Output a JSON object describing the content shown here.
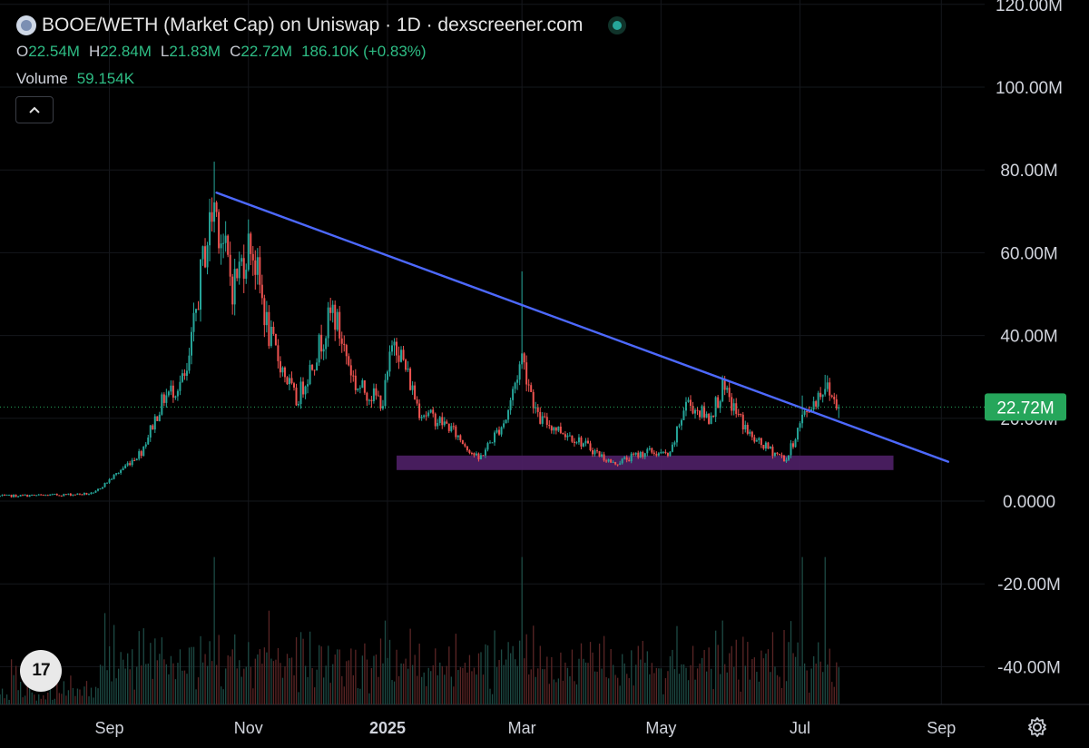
{
  "header": {
    "title": "BOOE/WETH (Market Cap) on Uniswap · 1D · dexscreener.com",
    "ohlc": {
      "o_label": "O",
      "o": "22.54M",
      "h_label": "H",
      "h": "22.84M",
      "l_label": "L",
      "l": "21.83M",
      "c_label": "C",
      "c": "22.72M",
      "change": "186.10K (+0.83%)"
    },
    "volume_label": "Volume",
    "volume_value": "59.154K",
    "collapse_icon": "chevron-up-icon",
    "live_icon": "live-status-dot-icon"
  },
  "logo_text": "17",
  "chart_data": {
    "type": "candlestick",
    "title": "BOOE/WETH (Market Cap) on Uniswap · 1D · dexscreener.com",
    "ylim": [
      -45000000,
      120000000
    ],
    "y_ticks": [
      {
        "v": 120000000,
        "label": "120.00M"
      },
      {
        "v": 100000000,
        "label": "100.00M"
      },
      {
        "v": 80000000,
        "label": "80.00M"
      },
      {
        "v": 60000000,
        "label": "60.00M"
      },
      {
        "v": 40000000,
        "label": "40.00M"
      },
      {
        "v": 20000000,
        "label": "20.00M"
      },
      {
        "v": 0,
        "label": "0.0000"
      },
      {
        "v": -20000000,
        "label": "-20.00M"
      },
      {
        "v": -40000000,
        "label": "-40.00M"
      }
    ],
    "x_range": [
      "2024-07-15",
      "2025-09-20"
    ],
    "x_ticks": [
      {
        "date": "2024-09-01",
        "label": "Sep",
        "bold": false
      },
      {
        "date": "2024-11-01",
        "label": "Nov",
        "bold": false
      },
      {
        "date": "2025-01-01",
        "label": "2025",
        "bold": true
      },
      {
        "date": "2025-03-01",
        "label": "Mar",
        "bold": false
      },
      {
        "date": "2025-05-01",
        "label": "May",
        "bold": false
      },
      {
        "date": "2025-07-01",
        "label": "Jul",
        "bold": false
      },
      {
        "date": "2025-09-01",
        "label": "Sep",
        "bold": false
      }
    ],
    "price_path": [
      {
        "date": "2024-07-15",
        "value": 1200000
      },
      {
        "date": "2024-08-10",
        "value": 1500000
      },
      {
        "date": "2024-08-25",
        "value": 1800000
      },
      {
        "date": "2024-09-05",
        "value": 7000000
      },
      {
        "date": "2024-09-15",
        "value": 12000000
      },
      {
        "date": "2024-09-25",
        "value": 25000000
      },
      {
        "date": "2024-10-05",
        "value": 30000000
      },
      {
        "date": "2024-10-12",
        "value": 58000000
      },
      {
        "date": "2024-10-17",
        "value": 72000000
      },
      {
        "date": "2024-10-25",
        "value": 52000000
      },
      {
        "date": "2024-11-02",
        "value": 63000000
      },
      {
        "date": "2024-11-10",
        "value": 40000000
      },
      {
        "date": "2024-11-22",
        "value": 24000000
      },
      {
        "date": "2024-12-01",
        "value": 36000000
      },
      {
        "date": "2024-12-08",
        "value": 46000000
      },
      {
        "date": "2024-12-18",
        "value": 28000000
      },
      {
        "date": "2024-12-30",
        "value": 24000000
      },
      {
        "date": "2025-01-04",
        "value": 40000000
      },
      {
        "date": "2025-01-15",
        "value": 22000000
      },
      {
        "date": "2025-01-28",
        "value": 18000000
      },
      {
        "date": "2025-02-10",
        "value": 10000000
      },
      {
        "date": "2025-02-22",
        "value": 20000000
      },
      {
        "date": "2025-03-01",
        "value": 35000000
      },
      {
        "date": "2025-03-08",
        "value": 20000000
      },
      {
        "date": "2025-03-25",
        "value": 15000000
      },
      {
        "date": "2025-04-10",
        "value": 9000000
      },
      {
        "date": "2025-04-25",
        "value": 12000000
      },
      {
        "date": "2025-05-05",
        "value": 11000000
      },
      {
        "date": "2025-05-12",
        "value": 24000000
      },
      {
        "date": "2025-05-22",
        "value": 20000000
      },
      {
        "date": "2025-05-28",
        "value": 27000000
      },
      {
        "date": "2025-06-10",
        "value": 15000000
      },
      {
        "date": "2025-06-25",
        "value": 10000000
      },
      {
        "date": "2025-07-02",
        "value": 20000000
      },
      {
        "date": "2025-07-12",
        "value": 28000000
      },
      {
        "date": "2025-07-18",
        "value": 22720000
      }
    ],
    "spikes": [
      {
        "date": "2024-10-17",
        "high": 82000000
      },
      {
        "date": "2025-03-01",
        "high": 55500000
      },
      {
        "date": "2025-07-02",
        "high": 25500000
      },
      {
        "date": "2025-07-12",
        "high": 30500000
      }
    ],
    "trendline": {
      "start": {
        "date": "2024-10-18",
        "value": 74500000
      },
      "end": {
        "date": "2025-09-04",
        "value": 9500000
      },
      "color": "#4d69ff"
    },
    "support_zone": {
      "from_date": "2025-01-05",
      "to_date": "2025-08-11",
      "low": 7500000,
      "high": 11000000,
      "color": "#4b1f62"
    },
    "last_price": {
      "value": 22720000,
      "label": "22.72M",
      "color": "#26a65b"
    },
    "volume_scale_max": 200000,
    "up_color": "#26a69a",
    "down_color": "#ef5350"
  }
}
